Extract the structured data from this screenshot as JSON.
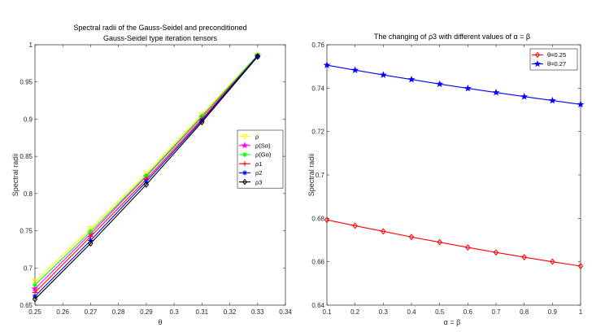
{
  "chart_data": [
    {
      "type": "line",
      "title_lines": [
        "Spectral radii of the Gauss-Seidel and preconditioned",
        "Gauss-Seidel type iteration tensors"
      ],
      "xlabel": "θ",
      "ylabel": "Spectral radii",
      "xlim": [
        0.25,
        0.34
      ],
      "ylim": [
        0.65,
        1.0
      ],
      "xticks": [
        "0.25",
        "0.26",
        "0.27",
        "0.28",
        "0.29",
        "0.3",
        "0.31",
        "0.32",
        "0.33",
        "0.34"
      ],
      "yticks": [
        "0.65",
        "0.7",
        "0.75",
        "0.8",
        "0.85",
        "0.9",
        "0.95",
        "1"
      ],
      "grid": false,
      "legend_position": "right-middle",
      "x": [
        0.25,
        0.27,
        0.29,
        0.31,
        0.33
      ],
      "series": [
        {
          "name": "ρ",
          "color": "#ffff00",
          "marker": "triangle-down",
          "values": [
            0.682,
            0.753,
            0.827,
            0.906,
            0.986
          ]
        },
        {
          "name": "ρ(Sα)",
          "color": "#ff00ff",
          "marker": "star",
          "values": [
            0.672,
            0.746,
            0.823,
            0.903,
            0.985
          ]
        },
        {
          "name": "ρ(Gα)",
          "color": "#00ff00",
          "marker": "asterisk",
          "values": [
            0.677,
            0.749,
            0.824,
            0.904,
            0.986
          ]
        },
        {
          "name": "ρ1",
          "color": "#ff0000",
          "marker": "plus",
          "values": [
            0.667,
            0.742,
            0.819,
            0.9,
            0.985
          ]
        },
        {
          "name": "ρ2",
          "color": "#0000ff",
          "marker": "asterisk",
          "values": [
            0.662,
            0.737,
            0.816,
            0.898,
            0.985
          ]
        },
        {
          "name": "ρ3",
          "color": "#000000",
          "marker": "diamond",
          "values": [
            0.658,
            0.733,
            0.812,
            0.896,
            0.984
          ]
        }
      ]
    },
    {
      "type": "line",
      "title": "The changing of ρ3 with different values of α = β",
      "xlabel": "α = β",
      "ylabel": "Spectral radii",
      "xlim": [
        0.1,
        1.0
      ],
      "ylim": [
        0.64,
        0.76
      ],
      "xticks": [
        "0.1",
        "0.2",
        "0.3",
        "0.4",
        "0.5",
        "0.6",
        "0.7",
        "0.8",
        "0.9",
        "1"
      ],
      "yticks": [
        "0.64",
        "0.66",
        "0.68",
        "0.7",
        "0.72",
        "0.74",
        "0.76"
      ],
      "grid": false,
      "legend_position": "top-right",
      "x": [
        0.1,
        0.2,
        0.3,
        0.4,
        0.5,
        0.6,
        0.7,
        0.8,
        0.9,
        1.0
      ],
      "series": [
        {
          "name": "θ=0.25",
          "color": "#ff0000",
          "marker": "diamond",
          "values": [
            0.6793,
            0.6766,
            0.674,
            0.6714,
            0.669,
            0.6666,
            0.6643,
            0.6621,
            0.66,
            0.658
          ]
        },
        {
          "name": "θ=0.27",
          "color": "#0000ff",
          "marker": "star",
          "values": [
            0.7506,
            0.7483,
            0.7461,
            0.744,
            0.7419,
            0.7399,
            0.738,
            0.7361,
            0.7343,
            0.7325
          ]
        }
      ]
    }
  ]
}
